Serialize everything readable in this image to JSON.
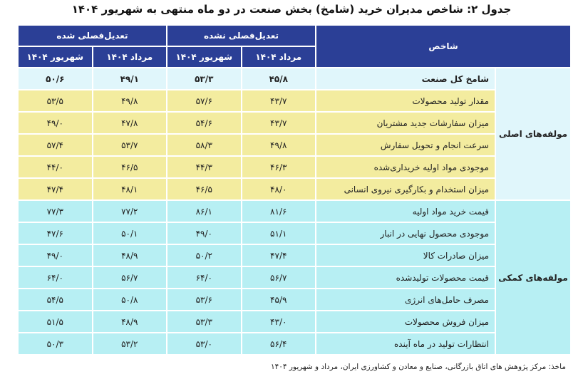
{
  "title": "جدول ۲: شاخص مدیران خرید (شامخ) بخش صنعت در دو ماه منتهی به شهریور ۱۴۰۴",
  "header": {
    "indicator": "شاخص",
    "group_unadjusted": "تعدیل‌فصلی نشده",
    "group_adjusted": "تعدیل‌فصلی شده",
    "months": [
      "مرداد ۱۴۰۴",
      "شهریور ۱۴۰۴",
      "مرداد ۱۴۰۴",
      "شهریور ۱۴۰۴"
    ]
  },
  "groups": {
    "main": "مولفه‌های اصلی",
    "aux": "مولفه‌های کمکی"
  },
  "rows": [
    {
      "label": "شامخ کل صنعت",
      "values": [
        "۴۵/۸",
        "۵۳/۳",
        "۴۹/۱",
        "۵۰/۶"
      ]
    },
    {
      "label": "مقدار تولید محصولات",
      "values": [
        "۴۳/۷",
        "۵۷/۶",
        "۴۹/۸",
        "۵۳/۵"
      ]
    },
    {
      "label": "میزان سفارشات جدید مشتریان",
      "values": [
        "۴۳/۷",
        "۵۴/۶",
        "۴۷/۸",
        "۴۹/۰"
      ]
    },
    {
      "label": "سرعت انجام و تحویل سفارش",
      "values": [
        "۴۹/۸",
        "۵۸/۳",
        "۵۳/۷",
        "۵۷/۴"
      ]
    },
    {
      "label": "موجودی مواد اولیه خریداری‌شده",
      "values": [
        "۴۶/۳",
        "۴۴/۳",
        "۴۶/۵",
        "۴۴/۰"
      ]
    },
    {
      "label": "میزان استخدام و بکارگیری نیروی انسانی",
      "values": [
        "۴۸/۰",
        "۴۶/۵",
        "۴۸/۱",
        "۴۷/۴"
      ]
    },
    {
      "label": "قیمت خرید مواد اولیه",
      "values": [
        "۸۱/۶",
        "۸۶/۱",
        "۷۷/۲",
        "۷۷/۳"
      ]
    },
    {
      "label": "موجودی محصول نهایی در انبار",
      "values": [
        "۵۱/۱",
        "۴۹/۰",
        "۵۰/۱",
        "۴۷/۶"
      ]
    },
    {
      "label": "میزان صادرات کالا",
      "values": [
        "۴۷/۴",
        "۵۰/۲",
        "۴۸/۹",
        "۴۹/۰"
      ]
    },
    {
      "label": "قیمت محصولات تولیدشده",
      "values": [
        "۵۶/۷",
        "۶۴/۰",
        "۵۶/۷",
        "۶۴/۰"
      ]
    },
    {
      "label": "مصرف حامل‌های انرژی",
      "values": [
        "۴۵/۹",
        "۵۳/۶",
        "۵۰/۸",
        "۵۴/۵"
      ]
    },
    {
      "label": "میزان فروش محصولات",
      "values": [
        "۴۳/۰",
        "۵۳/۳",
        "۴۸/۹",
        "۵۱/۵"
      ]
    },
    {
      "label": "انتظارات تولید در ماه آینده",
      "values": [
        "۵۶/۴",
        "۵۳/۰",
        "۵۳/۲",
        "۵۰/۳"
      ]
    }
  ],
  "source": "ماخذ: مرکز پژوهش های اتاق بازرگانی، صنایع و معادن و کشاورزی ایران، مرداد و شهریور ۱۴۰۴",
  "colors": {
    "header": "#2b3f96",
    "highlight": "#e0f6fb",
    "main": "#f3ec9f",
    "aux": "#b7eff3"
  }
}
